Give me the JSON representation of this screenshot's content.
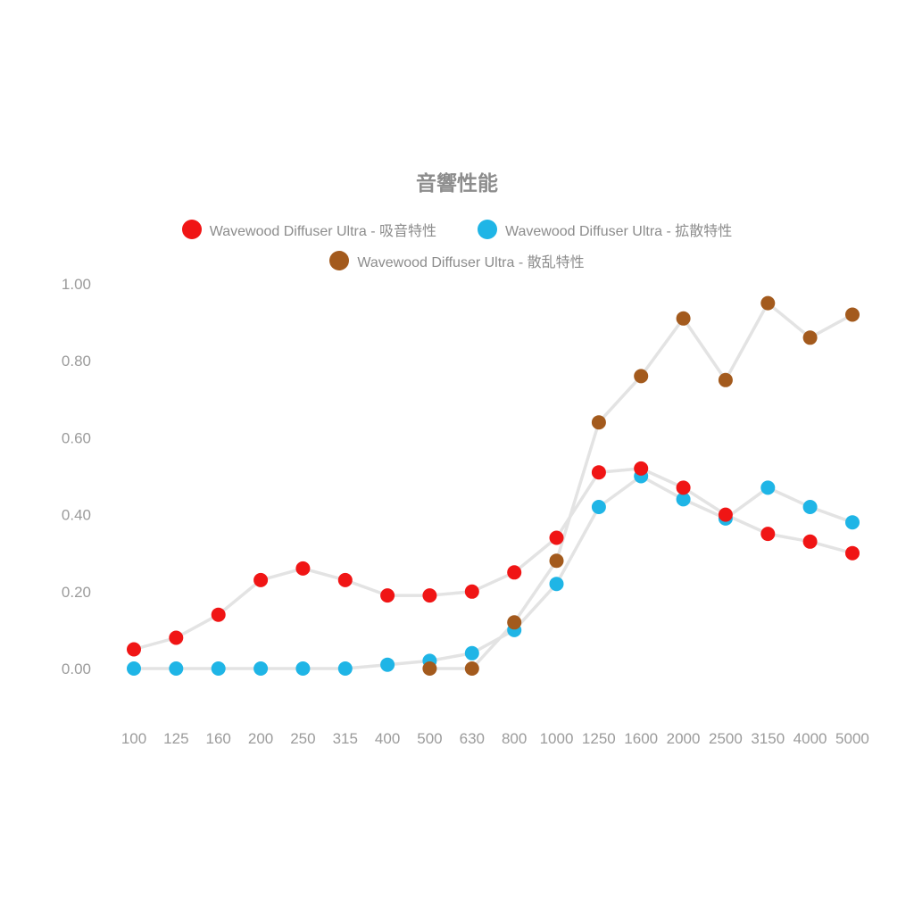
{
  "page": {
    "background": "#ffffff"
  },
  "chart_data": {
    "type": "line",
    "title": "音響性能",
    "xlabel": "",
    "ylabel": "",
    "categories": [
      "100",
      "125",
      "160",
      "200",
      "250",
      "315",
      "400",
      "500",
      "630",
      "800",
      "1000",
      "1250",
      "1600",
      "2000",
      "2500",
      "3150",
      "4000",
      "5000"
    ],
    "ylim": [
      0,
      1.0
    ],
    "yticks": [
      0,
      0.2,
      0.4,
      0.6,
      0.8,
      1.0
    ],
    "grid": false,
    "legend_position": "top",
    "connector_color": "#e3e3e3",
    "series": [
      {
        "key": "absorption",
        "name": "Wavewood Diffuser Ultra - 吸音特性",
        "color": "#f01515",
        "values": [
          0.05,
          0.08,
          0.14,
          0.23,
          0.26,
          0.23,
          0.19,
          0.19,
          0.2,
          0.25,
          0.34,
          0.51,
          0.52,
          0.47,
          0.4,
          0.35,
          0.33,
          0.3
        ]
      },
      {
        "key": "diffusion",
        "name": "Wavewood Diffuser Ultra - 拡散特性",
        "color": "#1fb5e6",
        "values": [
          0.0,
          0.0,
          0.0,
          0.0,
          0.0,
          0.0,
          0.01,
          0.02,
          0.04,
          0.1,
          0.22,
          0.42,
          0.5,
          0.44,
          0.39,
          0.47,
          0.42,
          0.38
        ]
      },
      {
        "key": "scattering",
        "name": "Wavewood Diffuser Ultra - 散乱特性",
        "color": "#a35a1d",
        "values": [
          null,
          null,
          null,
          null,
          null,
          null,
          null,
          0.0,
          0.0,
          0.12,
          0.28,
          0.64,
          0.76,
          0.91,
          0.75,
          0.95,
          0.86,
          0.92
        ]
      }
    ]
  }
}
